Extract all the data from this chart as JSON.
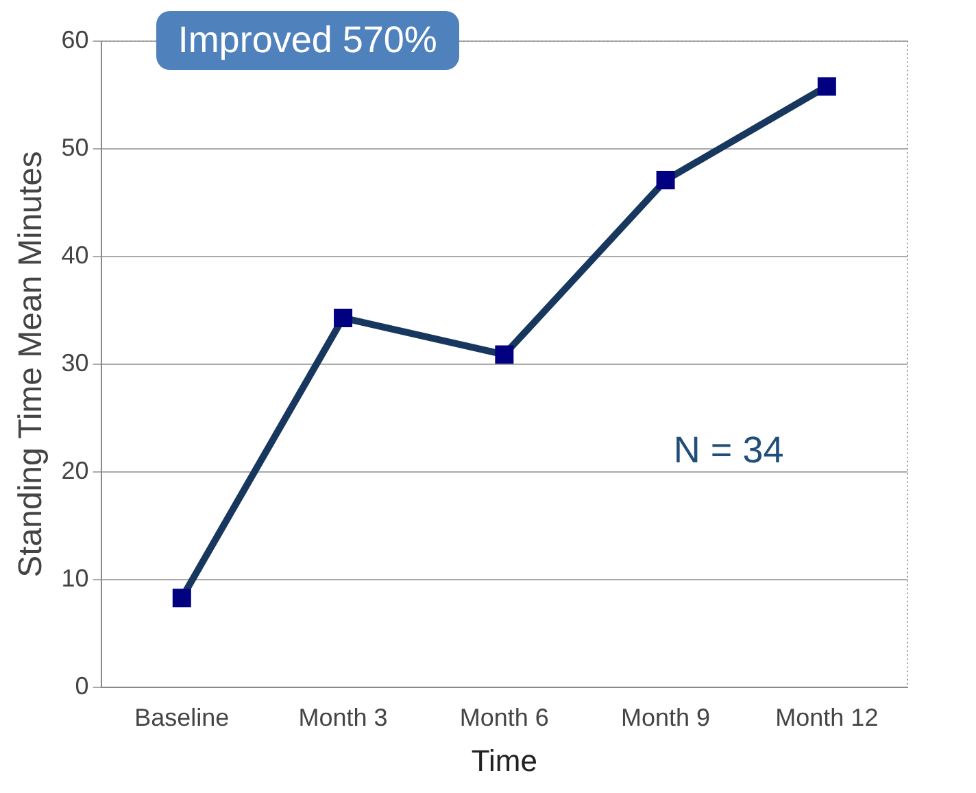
{
  "chart_data": {
    "type": "line",
    "xlabel": "Time",
    "ylabel": "Standing Time Mean Minutes",
    "categories": [
      "Baseline",
      "Month 3",
      "Month 6",
      "Month 9",
      "Month 12"
    ],
    "series": [
      {
        "color": "#17375e",
        "values": [
          8.3,
          34.3,
          30.9,
          47.1,
          55.8
        ]
      }
    ],
    "ylim": [
      0,
      60
    ],
    "yticks": [
      0,
      10,
      20,
      30,
      40,
      50,
      60
    ],
    "grid": "y",
    "legend": false,
    "marker": "square",
    "line_style": "solid",
    "annotations": [
      "Improved 570%",
      "N = 34"
    ]
  }
}
